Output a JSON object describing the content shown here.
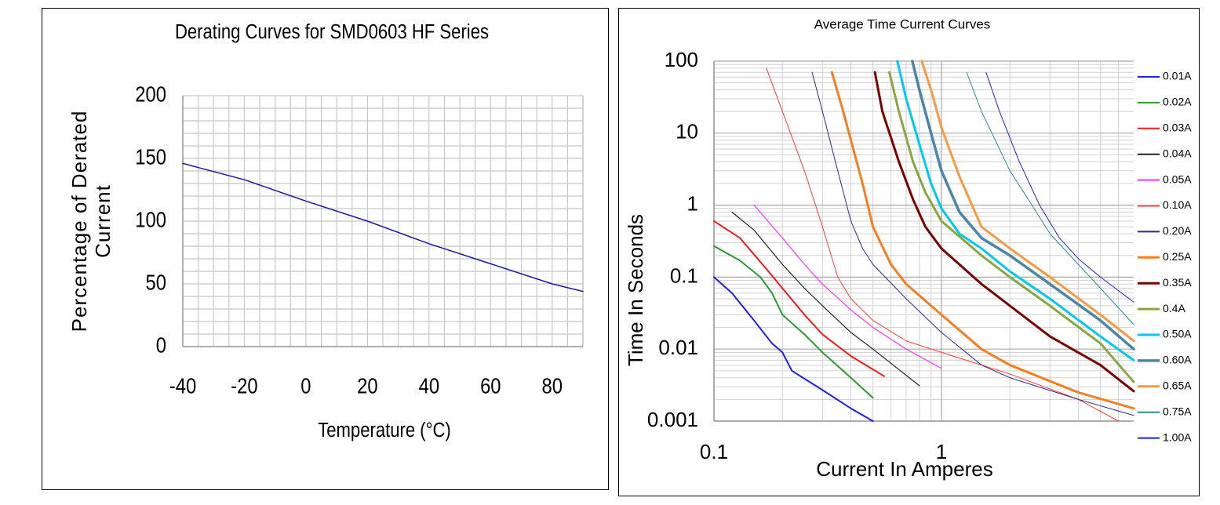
{
  "chart_data": [
    {
      "type": "line",
      "title": "Derating Curves for SMD0603 HF Series",
      "xlabel": "Temperature (°C)",
      "ylabel": [
        "Percentage of Derated",
        "Current"
      ],
      "x": [
        -40,
        -20,
        0,
        20,
        40,
        60,
        80,
        90
      ],
      "values": [
        146,
        133,
        116,
        100,
        82,
        66,
        50,
        44
      ],
      "color": "#1a1aa0",
      "xlim": [
        -40,
        90
      ],
      "xticks": [
        -40,
        -20,
        0,
        20,
        40,
        60,
        80
      ],
      "ylim": [
        0,
        200
      ],
      "yticks": [
        0,
        50,
        100,
        150,
        200
      ],
      "minor_xticks": [
        -35,
        -30,
        -25,
        -15,
        -10,
        -5,
        5,
        10,
        15,
        25,
        30,
        35,
        45,
        50,
        55,
        65,
        70,
        75,
        85,
        90
      ],
      "minor_yticks": [
        10,
        20,
        30,
        40,
        60,
        70,
        80,
        90,
        110,
        120,
        130,
        140,
        160,
        170,
        180,
        190
      ],
      "grid": true
    },
    {
      "type": "line",
      "title": "Average Time Current Curves",
      "xlabel": "Current In Amperes",
      "ylabel": "Time In Seconds",
      "log_x": true,
      "log_y": true,
      "grid": true,
      "legend": "right",
      "xlim": [
        0.1,
        7
      ],
      "xticks": [
        0.1,
        1
      ],
      "ylim": [
        0.001,
        100
      ],
      "yticks": [
        0.001,
        0.01,
        0.1,
        1,
        10,
        100
      ],
      "series": [
        {
          "name": "0.01A",
          "color": "#1f1fe6",
          "line_width": 2,
          "x": [
            0.1,
            0.12,
            0.15,
            0.18,
            0.2,
            0.22,
            0.3,
            0.4,
            0.5
          ],
          "values": [
            0.1,
            0.06,
            0.025,
            0.012,
            0.009,
            0.005,
            0.0027,
            0.0015,
            0.001
          ]
        },
        {
          "name": "0.02A",
          "color": "#2e9a2e",
          "line_width": 2,
          "x": [
            0.1,
            0.13,
            0.16,
            0.18,
            0.2,
            0.25,
            0.3,
            0.4,
            0.5
          ],
          "values": [
            0.27,
            0.17,
            0.1,
            0.06,
            0.03,
            0.016,
            0.009,
            0.004,
            0.0021
          ]
        },
        {
          "name": "0.03A",
          "color": "#ee1c1c",
          "line_width": 2,
          "x": [
            0.1,
            0.13,
            0.17,
            0.2,
            0.25,
            0.3,
            0.4,
            0.56
          ],
          "values": [
            0.6,
            0.35,
            0.13,
            0.07,
            0.03,
            0.016,
            0.008,
            0.0042
          ]
        },
        {
          "name": "0.04A",
          "color": "#222222",
          "line_width": 1.2,
          "x": [
            0.12,
            0.15,
            0.2,
            0.25,
            0.3,
            0.4,
            0.5,
            0.8
          ],
          "values": [
            0.8,
            0.45,
            0.15,
            0.07,
            0.04,
            0.017,
            0.01,
            0.0031
          ]
        },
        {
          "name": "0.05A",
          "color": "#ff33ff",
          "line_width": 1.2,
          "x": [
            0.15,
            0.2,
            0.25,
            0.3,
            0.4,
            0.5,
            0.7,
            1
          ],
          "values": [
            1,
            0.35,
            0.15,
            0.08,
            0.035,
            0.02,
            0.01,
            0.0054
          ]
        },
        {
          "name": "0.10A",
          "color": "#ff3b3b",
          "line_width": 1,
          "x": [
            0.17,
            0.2,
            0.25,
            0.3,
            0.35,
            0.4,
            0.5,
            0.7,
            1,
            2,
            4,
            6
          ],
          "values": [
            80,
            20,
            3,
            0.5,
            0.1,
            0.05,
            0.025,
            0.013,
            0.009,
            0.0045,
            0.002,
            0.001
          ]
        },
        {
          "name": "0.20A",
          "color": "#2b2b8f",
          "line_width": 1,
          "x": [
            0.27,
            0.3,
            0.35,
            0.4,
            0.45,
            0.5,
            0.7,
            1,
            1.5,
            2,
            4,
            7
          ],
          "values": [
            70,
            20,
            3,
            0.6,
            0.25,
            0.15,
            0.05,
            0.017,
            0.006,
            0.004,
            0.002,
            0.0012
          ]
        },
        {
          "name": "0.25A",
          "color": "#f57f20",
          "line_width": 3,
          "x": [
            0.33,
            0.37,
            0.45,
            0.5,
            0.6,
            0.7,
            1,
            1.5,
            2,
            4,
            7
          ],
          "values": [
            70,
            20,
            2,
            0.5,
            0.15,
            0.08,
            0.03,
            0.01,
            0.006,
            0.0025,
            0.0015
          ]
        },
        {
          "name": "0.35A",
          "color": "#7a0000",
          "line_width": 3,
          "x": [
            0.51,
            0.55,
            0.65,
            0.75,
            0.85,
            1,
            1.5,
            2,
            3,
            5,
            7
          ],
          "values": [
            70,
            20,
            4,
            1.2,
            0.5,
            0.25,
            0.08,
            0.04,
            0.015,
            0.006,
            0.0026
          ]
        },
        {
          "name": "0.4A",
          "color": "#8aa640",
          "line_width": 3,
          "x": [
            0.59,
            0.65,
            0.75,
            0.85,
            1,
            1.5,
            2,
            3,
            5,
            7
          ],
          "values": [
            70,
            20,
            4,
            1.5,
            0.6,
            0.2,
            0.1,
            0.04,
            0.012,
            0.0035
          ]
        },
        {
          "name": "0.50A",
          "color": "#00c8f0",
          "line_width": 3,
          "x": [
            0.64,
            0.7,
            0.8,
            0.9,
            1,
            1.2,
            1.5,
            2,
            3,
            5,
            7
          ],
          "values": [
            100,
            30,
            7,
            2,
            0.9,
            0.4,
            0.25,
            0.12,
            0.05,
            0.015,
            0.007
          ]
        },
        {
          "name": "0.60A",
          "color": "#4a86a8",
          "line_width": 3.5,
          "x": [
            0.745,
            0.8,
            0.9,
            1,
            1.2,
            1.5,
            2,
            3,
            5,
            7
          ],
          "values": [
            100,
            40,
            10,
            3,
            0.8,
            0.35,
            0.2,
            0.08,
            0.025,
            0.01
          ]
        },
        {
          "name": "0.65A",
          "color": "#f59a40",
          "line_width": 3,
          "x": [
            0.82,
            0.9,
            1,
            1.2,
            1.5,
            2,
            3,
            5,
            7
          ],
          "values": [
            100,
            40,
            12,
            2.5,
            0.5,
            0.25,
            0.1,
            0.03,
            0.013
          ]
        },
        {
          "name": "0.75A",
          "color": "#2a8f8f",
          "line_width": 1,
          "x": [
            1.29,
            1.5,
            2,
            2.5,
            3,
            4,
            5,
            7
          ],
          "values": [
            70,
            20,
            3,
            1,
            0.4,
            0.15,
            0.07,
            0.022
          ]
        },
        {
          "name": "1.00A",
          "color": "#2020e0",
          "line_width": 1,
          "x": [
            1.57,
            1.8,
            2.2,
            2.7,
            3.3,
            4,
            5,
            7
          ],
          "values": [
            70,
            20,
            4,
            1,
            0.35,
            0.18,
            0.1,
            0.045
          ]
        }
      ]
    }
  ]
}
